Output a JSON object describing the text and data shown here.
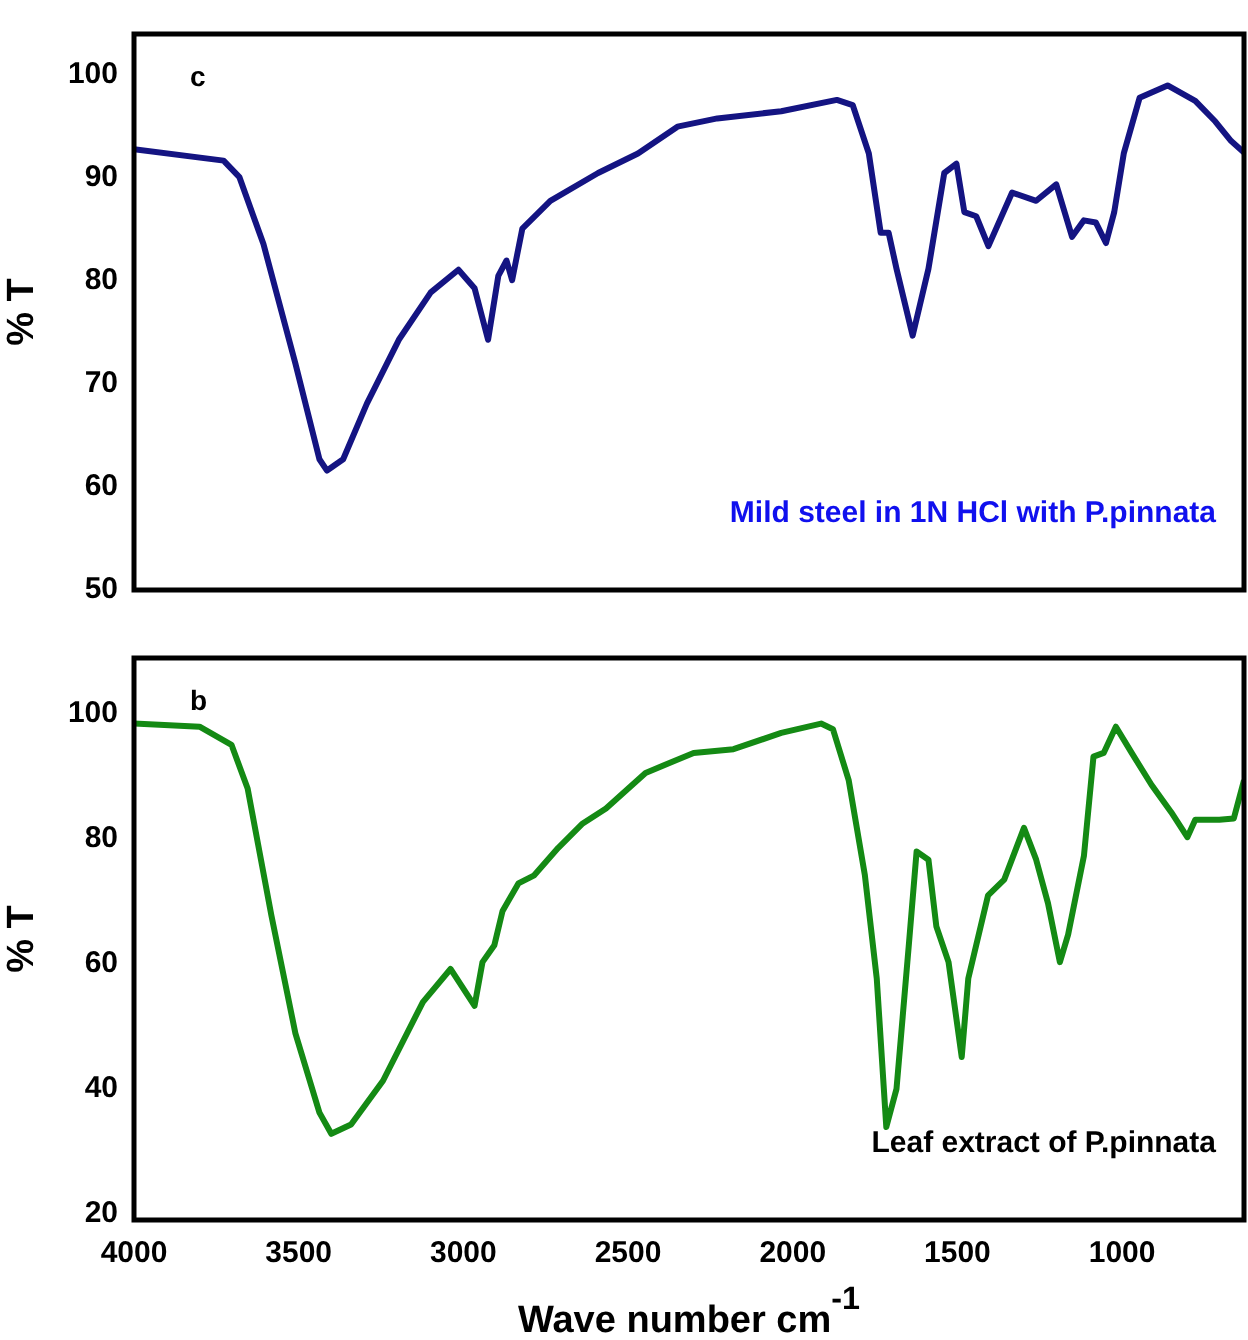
{
  "chart_data": [
    {
      "type": "line",
      "ylabel": "% T",
      "annotations": [
        "c",
        "Mild steel in 1N HCl with P.pinnata"
      ],
      "xlim": [
        4000,
        630
      ],
      "xticks": [
        4000,
        3500,
        3000,
        2500,
        2000,
        1500,
        1000
      ],
      "ylim": [
        50,
        104
      ],
      "yticks": [
        50,
        60,
        70,
        80,
        90,
        100
      ],
      "tick_labels": "y",
      "grid": false,
      "legend": false,
      "marker": "none",
      "series": [
        {
          "color": "#141482",
          "x": [
            4000,
            3728,
            3680,
            3607,
            3510,
            3437,
            3414,
            3365,
            3293,
            3196,
            3099,
            3015,
            2966,
            2925,
            2894,
            2869,
            2852,
            2821,
            2736,
            2591,
            2470,
            2350,
            2229,
            2035,
            1866,
            1818,
            1769,
            1733,
            1709,
            1685,
            1636,
            1588,
            1540,
            1503,
            1479,
            1443,
            1406,
            1334,
            1261,
            1200,
            1152,
            1116,
            1080,
            1049,
            1024,
            995,
            947,
            862,
            778,
            717,
            669,
            630
          ],
          "values": [
            92.8,
            91.7,
            90.1,
            83.6,
            72,
            62.7,
            61.6,
            62.7,
            68.1,
            74.3,
            78.9,
            81.1,
            79.3,
            74.3,
            80.5,
            82,
            80.1,
            85.1,
            87.8,
            90.5,
            92.4,
            95,
            95.8,
            96.5,
            97.6,
            97.1,
            92.4,
            84.7,
            84.7,
            81.2,
            74.7,
            81.2,
            90.5,
            91.4,
            86.7,
            86.3,
            83.4,
            88.6,
            87.8,
            89.4,
            84.3,
            85.9,
            85.7,
            83.7,
            86.7,
            92.4,
            97.8,
            99,
            97.5,
            95.5,
            93.6,
            92.5
          ]
        }
      ]
    },
    {
      "type": "line",
      "ylabel": "% T",
      "xlabel": "Wave number cm$^{-1}$",
      "annotations": [
        "b",
        "Leaf extract of P.pinnata"
      ],
      "xlim": [
        4000,
        630
      ],
      "xticks": [
        4000,
        3500,
        3000,
        2500,
        2000,
        1500,
        1000
      ],
      "ylim": [
        19,
        109
      ],
      "yticks": [
        20,
        40,
        60,
        80,
        100
      ],
      "grid": false,
      "legend": false,
      "marker": "none",
      "series": [
        {
          "color": "#148a14",
          "x": [
            4000,
            3801,
            3704,
            3655,
            3583,
            3510,
            3437,
            3401,
            3341,
            3244,
            3123,
            3039,
            2966,
            2942,
            2906,
            2881,
            2833,
            2785,
            2712,
            2640,
            2567,
            2447,
            2301,
            2180,
            2035,
            1914,
            1878,
            1830,
            1781,
            1745,
            1716,
            1685,
            1648,
            1624,
            1588,
            1564,
            1527,
            1487,
            1467,
            1407,
            1358,
            1298,
            1261,
            1225,
            1189,
            1164,
            1116,
            1087,
            1056,
            1019,
            971,
            911,
            851,
            802,
            778,
            705,
            661,
            630
          ],
          "values": [
            98.5,
            98,
            95.1,
            88.1,
            67.8,
            48.9,
            36.2,
            32.8,
            34.3,
            41.3,
            53.9,
            59.2,
            53.3,
            60.3,
            63,
            68.5,
            72.9,
            74.2,
            78.6,
            82.4,
            84.9,
            90.6,
            93.8,
            94.4,
            97,
            98.5,
            97.6,
            89.4,
            74.2,
            57.7,
            33.9,
            40,
            62.8,
            78,
            76.7,
            66,
            60.3,
            45.1,
            57.7,
            71,
            73.5,
            81.8,
            76.7,
            69.7,
            60.3,
            64.7,
            77.3,
            93.2,
            93.8,
            98,
            93.8,
            88.7,
            84.3,
            80.3,
            83.1,
            83.1,
            83.3,
            89.4
          ]
        }
      ]
    }
  ]
}
